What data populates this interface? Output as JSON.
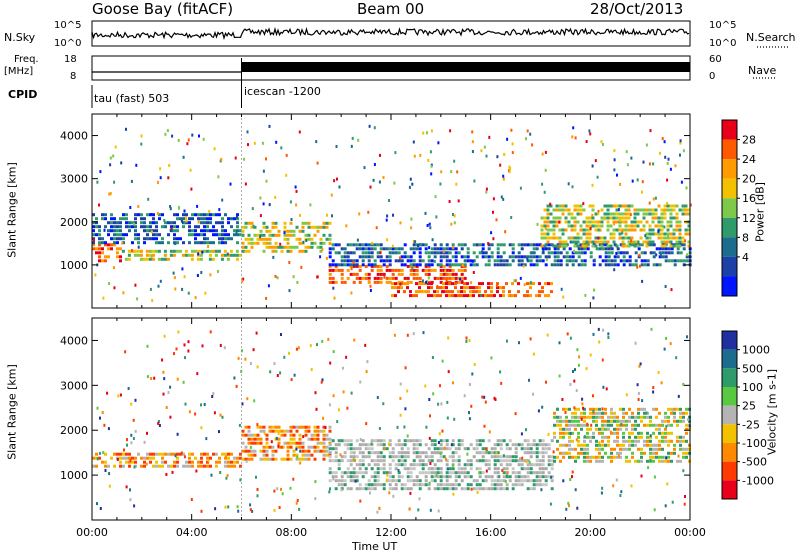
{
  "header": {
    "station": "Goose Bay (fitACF)",
    "beam": "Beam 00",
    "date": "28/Oct/2013"
  },
  "strip_labels": {
    "nsky": "N.Sky",
    "nsky_top": "10^5",
    "nsky_bottom": "10^0",
    "nsearch": "N.Search",
    "nsearch_top": "10^5",
    "nsearch_bottom": "10^0",
    "freq": "Freq.",
    "freq_unit": "[MHz]",
    "freq_top": "18",
    "freq_bottom": "8",
    "nave": "Nave",
    "nave_top": "60",
    "nave_bottom": "0",
    "cpid": "CPID",
    "cpid_segments": [
      {
        "label": "tau (fast) 503",
        "start_hour": 0
      },
      {
        "label": "icescan -1200",
        "start_hour": 6
      }
    ]
  },
  "chart_data": [
    {
      "type": "heatmap",
      "name": "power-panel",
      "xlabel": "",
      "ylabel": "Slant Range [km]",
      "xlim": [
        0,
        24
      ],
      "ylim": [
        0,
        4500
      ],
      "yticks": [
        "1000",
        "2000",
        "3000",
        "4000"
      ],
      "colorbar_label": "Power [dB]",
      "colorbar_ticks": [
        "28",
        "24",
        "20",
        "16",
        "12",
        "8",
        "4"
      ],
      "colorbar_colors": [
        "#e8001a",
        "#ff5a00",
        "#ff9a00",
        "#f2c200",
        "#7ec84a",
        "#2f9a6a",
        "#1c6c8e",
        "#1c3fa8",
        "#0015ff"
      ],
      "echo_bands": [
        {
          "x0": 0.0,
          "x1": 1.2,
          "y0": 1100,
          "y1": 1500,
          "level": "high"
        },
        {
          "x0": 1.2,
          "x1": 6.0,
          "y0": 1150,
          "y1": 1350,
          "level": "mid"
        },
        {
          "x0": 0.0,
          "x1": 6.0,
          "y0": 1500,
          "y1": 2200,
          "level": "low"
        },
        {
          "x0": 6.0,
          "x1": 9.5,
          "y0": 1300,
          "y1": 2000,
          "level": "mid"
        },
        {
          "x0": 9.5,
          "x1": 15.0,
          "y0": 600,
          "y1": 1000,
          "level": "high"
        },
        {
          "x0": 12.0,
          "x1": 18.5,
          "y0": 300,
          "y1": 600,
          "level": "high"
        },
        {
          "x0": 9.5,
          "x1": 24.0,
          "y0": 1000,
          "y1": 1500,
          "level": "low"
        },
        {
          "x0": 18.0,
          "x1": 24.0,
          "y0": 1400,
          "y1": 2400,
          "level": "mid"
        }
      ]
    },
    {
      "type": "heatmap",
      "name": "velocity-panel",
      "xlabel": "Time UT",
      "ylabel": "Slant Range [km]",
      "xlim": [
        0,
        24
      ],
      "ylim": [
        0,
        4500
      ],
      "xticks": [
        "00:00",
        "04:00",
        "08:00",
        "12:00",
        "16:00",
        "20:00",
        "00:00"
      ],
      "yticks": [
        "1000",
        "2000",
        "3000",
        "4000"
      ],
      "colorbar_label": "Velocity [m s-1]",
      "colorbar_ticks": [
        "1000",
        "500",
        "100",
        "25",
        "-25",
        "-100",
        "-500",
        "-1000"
      ],
      "colorbar_colors": [
        "#2030a0",
        "#1c6c8e",
        "#2f9a6a",
        "#5ac840",
        "#b4b4b4",
        "#f2c200",
        "#ff8a00",
        "#ff3a00",
        "#e8001a"
      ],
      "echo_bands": [
        {
          "x0": 0.0,
          "x1": 6.0,
          "y0": 1150,
          "y1": 1500,
          "level": "neg"
        },
        {
          "x0": 6.0,
          "x1": 9.5,
          "y0": 1300,
          "y1": 2100,
          "level": "neg"
        },
        {
          "x0": 9.5,
          "x1": 18.5,
          "y0": 700,
          "y1": 1800,
          "level": "zero"
        },
        {
          "x0": 18.5,
          "x1": 24.0,
          "y0": 1300,
          "y1": 2500,
          "level": "mixed"
        }
      ]
    }
  ]
}
